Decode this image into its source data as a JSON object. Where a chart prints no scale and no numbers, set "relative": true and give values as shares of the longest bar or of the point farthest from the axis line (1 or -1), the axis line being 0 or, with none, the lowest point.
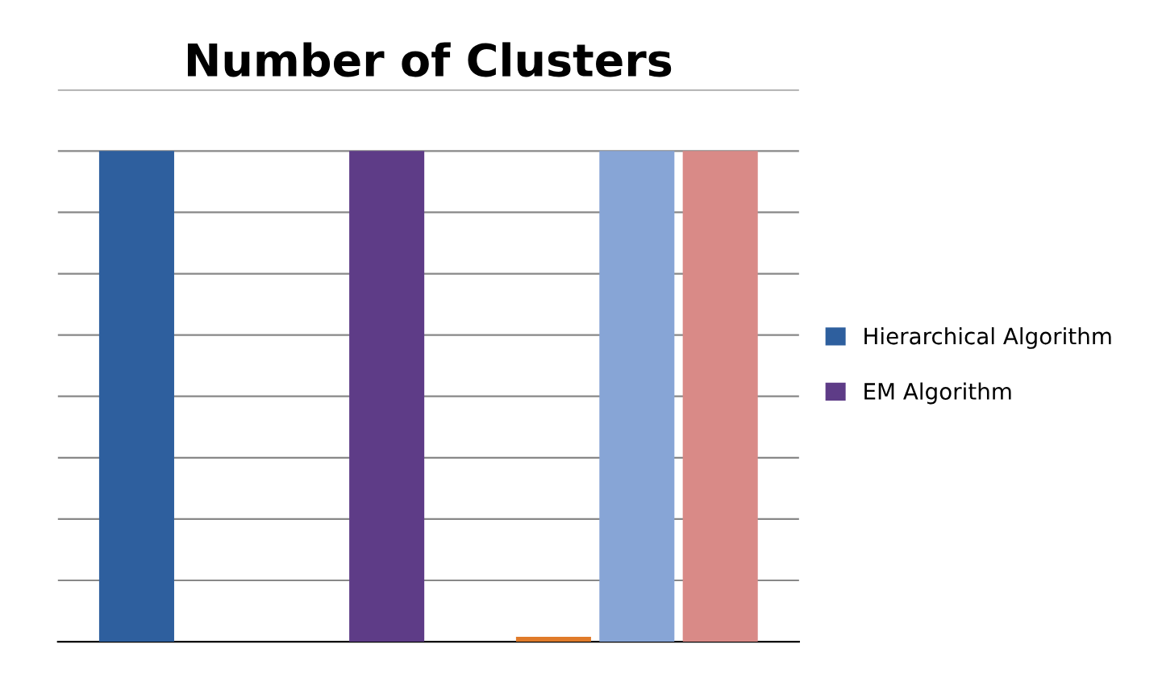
{
  "chart_data": {
    "type": "bar",
    "title": "Number of Clusters",
    "relative": true,
    "categories": [
      null
    ],
    "series": [
      {
        "name": "Hierarchical Algorithm",
        "color": "#2e5f9e",
        "values": [
          1
        ]
      },
      {
        "color": "#a52a2a",
        "values": [
          0
        ]
      },
      {
        "color": "#7aa63a",
        "values": [
          0
        ]
      },
      {
        "name": "EM Algorithm",
        "color": "#5e3c87",
        "values": [
          1
        ]
      },
      {
        "color": "#2aa3c4",
        "values": [
          0
        ]
      },
      {
        "color": "#e07b2a",
        "values": [
          0.01
        ]
      },
      {
        "color": "#87a5d6",
        "values": [
          1
        ]
      },
      {
        "color": "#d98a87",
        "values": [
          1
        ]
      }
    ],
    "grid": "y",
    "legend": "right"
  }
}
